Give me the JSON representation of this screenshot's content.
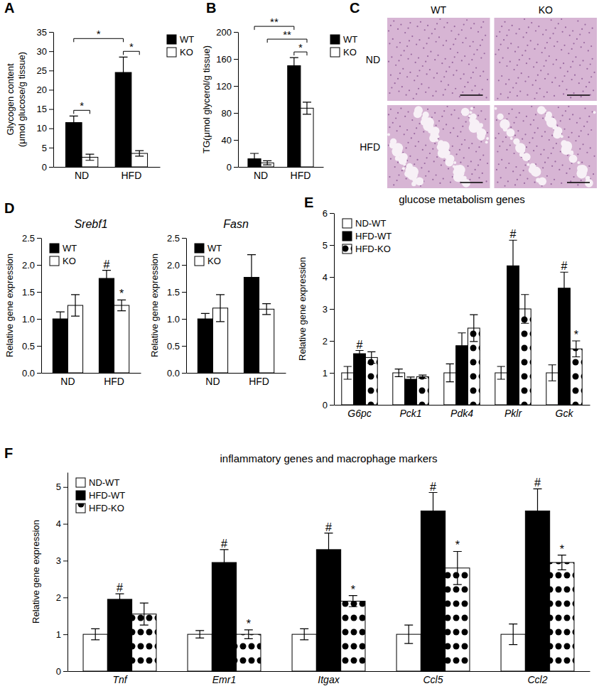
{
  "chart_data": [
    {
      "type": "bar",
      "label": "A",
      "ylabel": [
        "Glycogen content",
        "(μmol glucose/g tissue)"
      ],
      "categories": [
        "ND",
        "HFD"
      ],
      "series": [
        {
          "name": "WT",
          "color": "#000000",
          "values": [
            11.5,
            24.5
          ],
          "errors": [
            1.7,
            4.0
          ]
        },
        {
          "name": "KO",
          "color": "#ffffff",
          "values": [
            2.5,
            3.5
          ],
          "errors": [
            0.8,
            0.7
          ]
        }
      ],
      "ylim": [
        0,
        35
      ],
      "yticks": [
        0,
        5,
        10,
        15,
        20,
        25,
        30,
        35
      ],
      "legend": "right",
      "brackets": [
        {
          "text": "*",
          "from": [
            "ND",
            "WT"
          ],
          "to": [
            "ND",
            "KO"
          ]
        },
        {
          "text": "*",
          "from": [
            "HFD",
            "WT"
          ],
          "to": [
            "HFD",
            "KO"
          ]
        },
        {
          "text": "*",
          "from": [
            "ND",
            "WT"
          ],
          "to": [
            "HFD",
            "WT"
          ]
        }
      ]
    },
    {
      "type": "bar",
      "label": "B",
      "ylabel": "TG(μmol glycerol/g tissue)",
      "categories": [
        "ND",
        "HFD"
      ],
      "series": [
        {
          "name": "WT",
          "color": "#000000",
          "values": [
            12,
            150
          ],
          "errors": [
            8,
            12
          ]
        },
        {
          "name": "KO",
          "color": "#ffffff",
          "values": [
            6,
            87
          ],
          "errors": [
            3,
            9
          ]
        }
      ],
      "ylim": [
        0,
        200
      ],
      "yticks": [
        0,
        40,
        80,
        120,
        160,
        200
      ],
      "legend": "right",
      "brackets": [
        {
          "text": "*",
          "from": [
            "HFD",
            "WT"
          ],
          "to": [
            "HFD",
            "KO"
          ]
        },
        {
          "text": "**",
          "from": [
            "ND",
            "KO"
          ],
          "to": [
            "HFD",
            "KO"
          ]
        },
        {
          "text": "**",
          "from": [
            "ND",
            "WT"
          ],
          "to": [
            "HFD",
            "WT"
          ]
        }
      ]
    },
    {
      "type": "image_grid",
      "label": "C",
      "columns": [
        "WT",
        "KO"
      ],
      "rows": [
        "ND",
        "HFD"
      ]
    },
    {
      "type": "bar",
      "label": "D",
      "title": "Srebf1",
      "ylabel": "Relative gene expression",
      "categories": [
        "ND",
        "HFD"
      ],
      "series": [
        {
          "name": "WT",
          "color": "#000000",
          "values": [
            1.0,
            1.75
          ],
          "errors": [
            0.13,
            0.15
          ],
          "sig": [
            null,
            "#"
          ]
        },
        {
          "name": "KO",
          "color": "#ffffff",
          "values": [
            1.25,
            1.25
          ],
          "errors": [
            0.2,
            0.1
          ],
          "sig": [
            null,
            "*"
          ]
        }
      ],
      "ylim": [
        0,
        2.5
      ],
      "yticks": [
        {
          "value": 0,
          "label": "0.0"
        },
        0.5,
        {
          "value": 1,
          "label": "1.0"
        },
        1.5,
        {
          "value": 2,
          "label": "2.0"
        },
        2.5
      ],
      "legend": "upper left"
    },
    {
      "type": "bar",
      "title": "Fasn",
      "ylabel": "Relative gene expression",
      "categories": [
        "ND",
        "HFD"
      ],
      "series": [
        {
          "name": "WT",
          "color": "#000000",
          "values": [
            1.0,
            1.77
          ],
          "errors": [
            0.1,
            0.42
          ]
        },
        {
          "name": "KO",
          "color": "#ffffff",
          "values": [
            1.2,
            1.18
          ],
          "errors": [
            0.25,
            0.1
          ]
        }
      ],
      "ylim": [
        0,
        2.5
      ],
      "yticks": [
        {
          "value": 0,
          "label": "0.0"
        },
        0.5,
        {
          "value": 1,
          "label": "1.0"
        },
        1.5,
        {
          "value": 2,
          "label": "2.0"
        },
        2.5
      ],
      "legend": "upper left"
    },
    {
      "type": "bar",
      "label": "E",
      "title": "glucose metabolism genes",
      "ylabel": "Relative gene expression",
      "categories": [
        "G6pc",
        "Pck1",
        "Pdk4",
        "Pklr",
        "Gck"
      ],
      "series": [
        {
          "name": "ND-WT",
          "color": "#ffffff",
          "values": [
            1,
            1,
            1,
            1,
            1
          ],
          "errors": [
            0.2,
            0.12,
            0.28,
            0.2,
            0.25
          ]
        },
        {
          "name": "HFD-WT",
          "color": "#000000",
          "values": [
            1.6,
            0.8,
            1.85,
            4.35,
            3.65
          ],
          "errors": [
            0.1,
            0.07,
            0.4,
            0.8,
            0.5
          ],
          "sig": [
            "#",
            null,
            null,
            "#",
            "#"
          ]
        },
        {
          "name": "HFD-KO",
          "color": "#ffffff",
          "marker": "dots",
          "values": [
            1.48,
            0.88,
            2.4,
            3.0,
            1.75
          ],
          "errors": [
            0.18,
            0.05,
            0.42,
            0.45,
            0.25
          ],
          "sig": [
            null,
            null,
            null,
            null,
            "*"
          ]
        }
      ],
      "ylim": [
        0,
        6
      ],
      "yticks": [
        0,
        1,
        2,
        3,
        4,
        5,
        6
      ],
      "legend": "upper left"
    },
    {
      "type": "bar",
      "label": "F",
      "title": "inflammatory genes and macrophage markers",
      "ylabel": "Relative gene expression",
      "categories": [
        "Tnf",
        "Emr1",
        "Itgax",
        "Ccl5",
        "Ccl2"
      ],
      "series": [
        {
          "name": "ND-WT",
          "color": "#ffffff",
          "values": [
            1,
            1,
            1,
            1,
            1
          ],
          "errors": [
            0.15,
            0.1,
            0.15,
            0.25,
            0.28
          ]
        },
        {
          "name": "HFD-WT",
          "color": "#000000",
          "values": [
            1.95,
            2.95,
            3.3,
            4.35,
            4.35
          ],
          "errors": [
            0.15,
            0.35,
            0.45,
            0.5,
            0.6
          ],
          "sig": [
            "#",
            "#",
            "#",
            "#",
            "#"
          ]
        },
        {
          "name": "HFD-KO",
          "color": "#ffffff",
          "marker": "dots",
          "values": [
            1.55,
            1.0,
            1.9,
            2.8,
            2.95
          ],
          "errors": [
            0.3,
            0.12,
            0.15,
            0.45,
            0.2
          ],
          "sig": [
            null,
            "*",
            "*",
            "*",
            "*"
          ]
        }
      ],
      "ylim": [
        0,
        5.4
      ],
      "yticks": [
        0,
        1,
        2,
        3,
        4,
        5
      ],
      "legend": "upper left"
    }
  ]
}
